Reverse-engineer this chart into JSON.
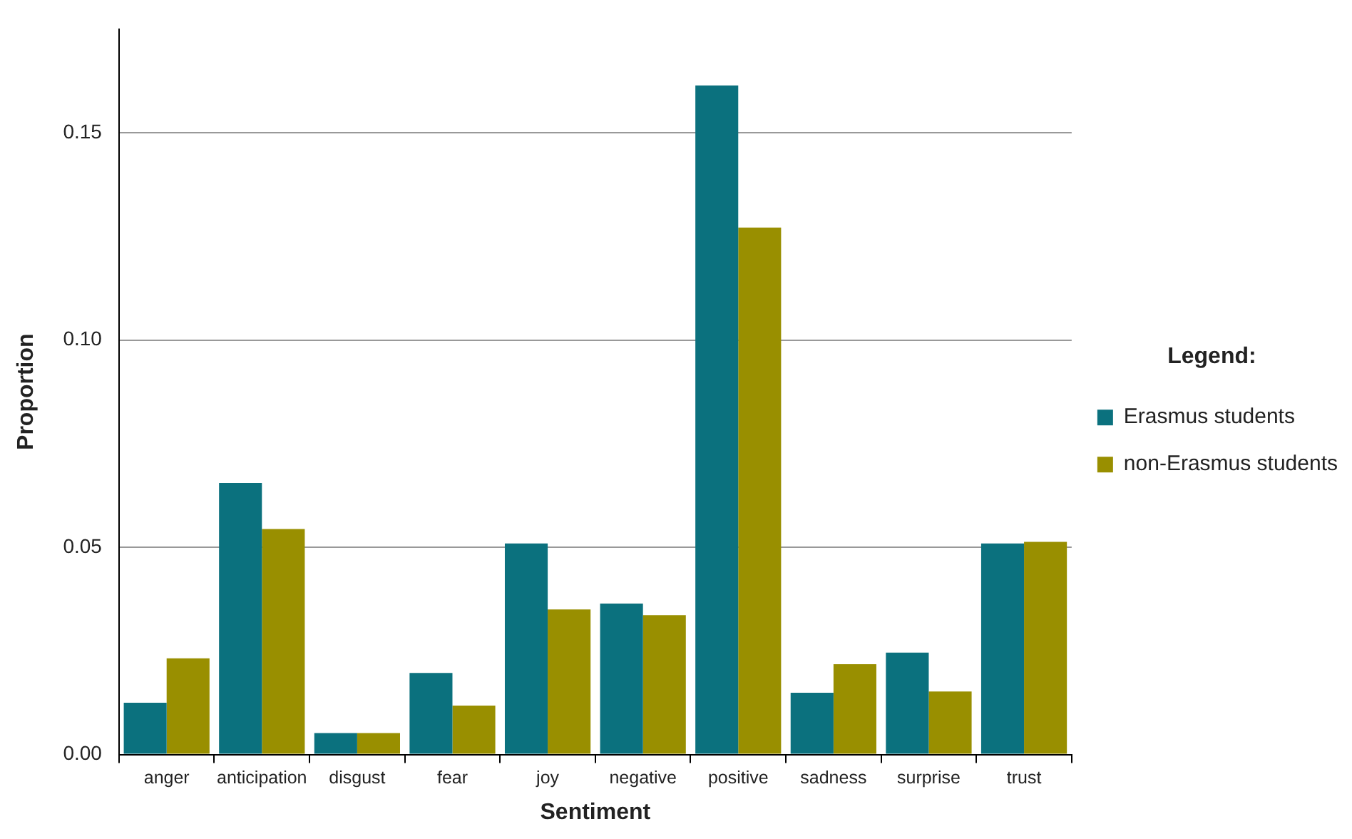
{
  "chart_data": {
    "type": "bar",
    "xlabel": "Sentiment",
    "ylabel": "Proportion",
    "legend_title": "Legend:",
    "categories": [
      "anger",
      "anticipation",
      "disgust",
      "fear",
      "joy",
      "negative",
      "positive",
      "sadness",
      "surprise",
      "trust"
    ],
    "series": [
      {
        "name": "Erasmus students",
        "color": "#0b717e",
        "values": [
          0.0125,
          0.0655,
          0.0052,
          0.0197,
          0.0509,
          0.0364,
          0.1614,
          0.0149,
          0.0246,
          0.0509
        ]
      },
      {
        "name": "non-Erasmus students",
        "color": "#998f00",
        "values": [
          0.0232,
          0.0544,
          0.0052,
          0.0118,
          0.035,
          0.0336,
          0.1271,
          0.0218,
          0.0152,
          0.0513
        ]
      }
    ],
    "ylim": [
      0,
      0.175
    ],
    "yticks": [
      {
        "value": 0,
        "label": "0.00"
      },
      {
        "value": 0.05,
        "label": "0.05"
      },
      {
        "value": 0.1,
        "label": "0.10"
      },
      {
        "value": 0.15,
        "label": "0.15"
      }
    ],
    "grid": "y",
    "legend": "right"
  }
}
